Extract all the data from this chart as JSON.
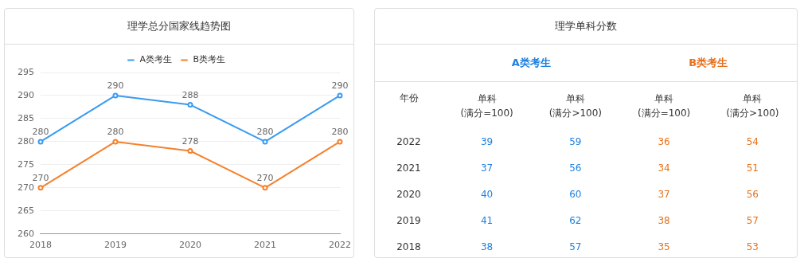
{
  "chart_data": [
    {
      "type": "line",
      "title": "理学总分国家线趋势图",
      "categories": [
        "2018",
        "2019",
        "2020",
        "2021",
        "2022"
      ],
      "series": [
        {
          "name": "A类考生",
          "color": "#3a9bf0",
          "values": [
            280,
            290,
            288,
            280,
            290
          ]
        },
        {
          "name": "B类考生",
          "color": "#f5812c",
          "values": [
            270,
            280,
            278,
            270,
            280
          ]
        }
      ],
      "ylim": [
        260,
        295
      ],
      "yticks": [
        260,
        265,
        270,
        275,
        280,
        285,
        290,
        295
      ],
      "grid": "y",
      "legend": "top",
      "marker": "circle",
      "data_labels": true
    },
    {
      "type": "heatmap",
      "title": "理学单科分数",
      "ylabel": "年份",
      "categories": [
        "单科\n(满分=100)",
        "单科\n(满分>100)",
        "单科\n(满分=100)",
        "单科\n(满分>100)"
      ],
      "y_categories": [
        "2022",
        "2021",
        "2020",
        "2019",
        "2018"
      ],
      "annotations": [
        "A类考生",
        "B类考生"
      ],
      "data_labels": true,
      "colors": [
        "#1e80e0",
        "#1e80e0",
        "#e8701a",
        "#e8701a"
      ],
      "cells": [
        [
          39,
          59,
          36,
          54
        ],
        [
          37,
          56,
          34,
          51
        ],
        [
          40,
          60,
          37,
          56
        ],
        [
          41,
          62,
          38,
          57
        ],
        [
          38,
          57,
          35,
          53
        ]
      ]
    }
  ]
}
